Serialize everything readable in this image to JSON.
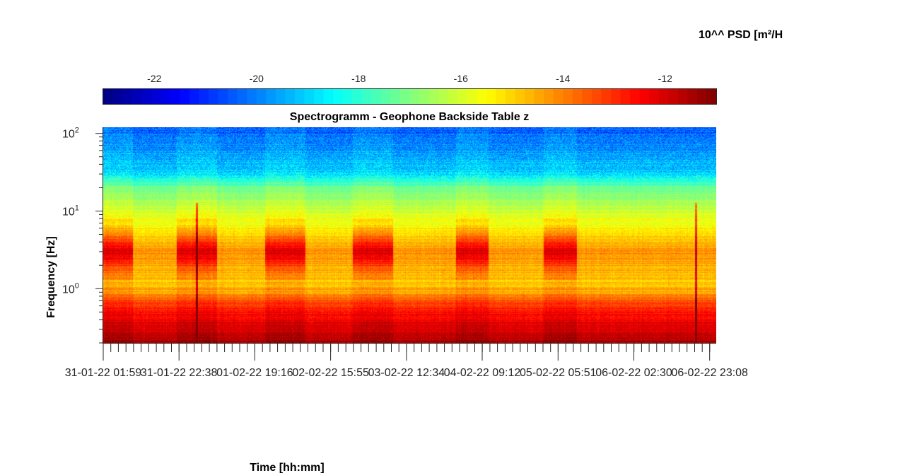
{
  "chart_data": {
    "type": "heatmap",
    "title": "Spectrogramm - Geophone Backside Table z",
    "xlabel": "Time [hh:mm]",
    "ylabel": "Frequency [Hz]",
    "colorbar_label": "10^^ PSD [m²/H",
    "colorbar_ticks": [
      "-22",
      "-20",
      "-18",
      "-16",
      "-14",
      "-12"
    ],
    "colorbar_tick_values": [
      -22,
      -20,
      -18,
      -16,
      -14,
      -12
    ],
    "colorbar_range": [
      -23.0,
      -11.0
    ],
    "colormap": "jet",
    "colorbar_position": "top",
    "y_scale": "log",
    "y_range": [
      0.2,
      120
    ],
    "y_ticks": [
      {
        "base": "10",
        "exp": "0",
        "value": 1
      },
      {
        "base": "10",
        "exp": "1",
        "value": 10
      },
      {
        "base": "10",
        "exp": "2",
        "value": 100
      }
    ],
    "x_tick_labels": [
      "31-01-22 01:59",
      "31-01-22 22:38",
      "01-02-22 19:16",
      "02-02-22 15:55",
      "03-02-22 12:34",
      "04-02-22 09:12",
      "05-02-22 05:51",
      "06-02-22 02:30",
      "06-02-22 23:08"
    ],
    "x_tick_times": [
      "2022-01-31 01:59",
      "2022-01-31 22:38",
      "2022-02-01 19:16",
      "2022-02-02 15:55",
      "2022-02-03 12:34",
      "2022-02-04 09:12",
      "2022-02-05 05:51",
      "2022-02-06 02:30",
      "2022-02-06 23:08"
    ],
    "x_range": [
      "2022-01-31 01:59",
      "2022-02-07 00:56"
    ],
    "psd_profile": [
      {
        "freq": 0.2,
        "log_psd": -11.5
      },
      {
        "freq": 0.5,
        "log_psd": -12.7
      },
      {
        "freq": 0.7,
        "log_psd": -13.5
      },
      {
        "freq": 1.0,
        "log_psd": -15.0
      },
      {
        "freq": 3.0,
        "log_psd": -14.2
      },
      {
        "freq": 10,
        "log_psd": -16.2
      },
      {
        "freq": 20,
        "log_psd": -17.2
      },
      {
        "freq": 30,
        "log_psd": -19.0
      },
      {
        "freq": 120,
        "log_psd": -20.5
      }
    ],
    "active_periods": [
      [
        "2022-01-31 01:59",
        "2022-01-31 10:00"
      ],
      [
        "2022-01-31 22:00",
        "2022-02-01 09:00"
      ],
      [
        "2022-02-01 22:00",
        "2022-02-02 09:00"
      ],
      [
        "2022-02-02 22:00",
        "2022-02-03 09:00"
      ],
      [
        "2022-02-04 02:00",
        "2022-02-04 11:00"
      ],
      [
        "2022-02-05 02:00",
        "2022-02-05 11:00"
      ]
    ],
    "transient_events": [
      "2022-02-01 03:30",
      "2022-02-06 19:30"
    ]
  }
}
